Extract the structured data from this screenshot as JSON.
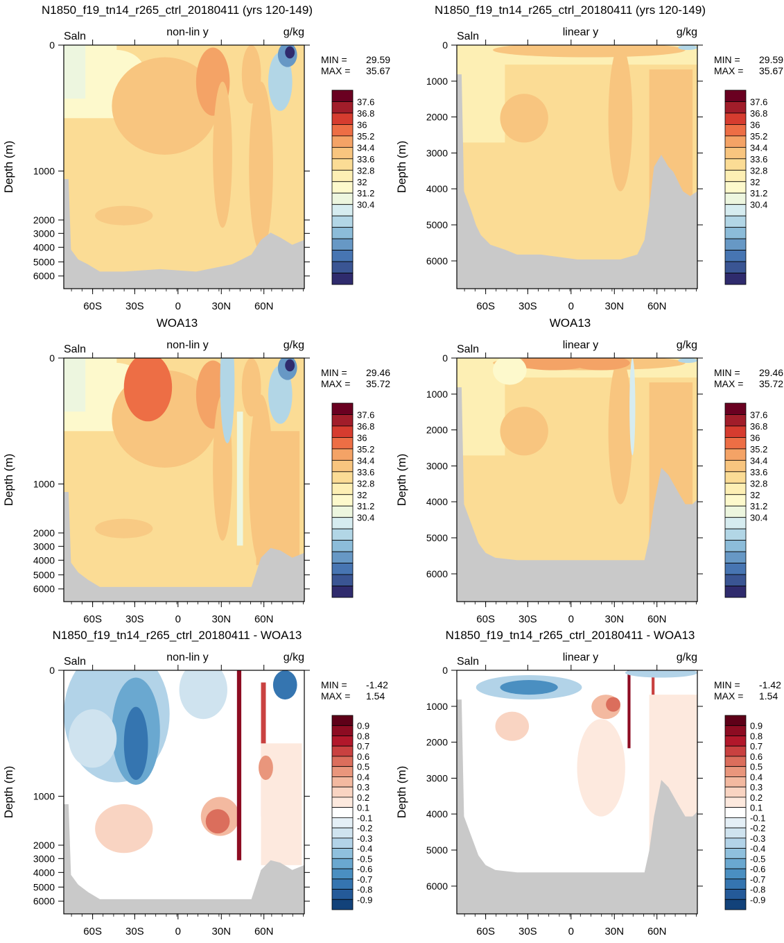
{
  "chart_data": [
    {
      "type": "heatmap",
      "panel": "model",
      "title": "N1850_f19_tn14_r265_ctrl_20180411 (yrs 120-149)",
      "variable_label": "Saln",
      "mode_label": "non-lin y",
      "units": "g/kg",
      "ylabel": "Depth (m)",
      "y_ticks": [
        "0",
        "1000",
        "2000",
        "3000",
        "4000",
        "5000",
        "6000"
      ],
      "x_ticks": [
        "60S",
        "30S",
        "0",
        "30N",
        "60N"
      ],
      "min_label": "MIN = ",
      "min": "29.59",
      "max_label": "MAX = ",
      "max": "35.67",
      "colorbar_labels": [
        "37.6",
        "36.8",
        "36",
        "35.2",
        "34.4",
        "33.6",
        "32.8",
        "32",
        "31.2",
        "30.4"
      ],
      "palette": [
        "#6a0021",
        "#a11d2a",
        "#d63c2f",
        "#ed6e45",
        "#f4a366",
        "#f8c57f",
        "#fbdc95",
        "#fdefb4",
        "#fdf9cc",
        "#edf6df",
        "#d6ecf0",
        "#b2d6e6",
        "#8cbcd9",
        "#6798c5",
        "#4775b2",
        "#3a5593",
        "#2f2b6d"
      ],
      "seafloor_color": "#c9c9c9"
    },
    {
      "type": "heatmap",
      "panel": "model",
      "title": "N1850_f19_tn14_r265_ctrl_20180411 (yrs 120-149)",
      "variable_label": "Saln",
      "mode_label": "linear y",
      "units": "g/kg",
      "ylabel": "Depth (m)",
      "y_ticks": [
        "0",
        "1000",
        "2000",
        "3000",
        "4000",
        "5000",
        "6000"
      ],
      "x_ticks": [
        "60S",
        "30S",
        "0",
        "30N",
        "60N"
      ],
      "min_label": "MIN = ",
      "min": "29.59",
      "max_label": "MAX = ",
      "max": "35.67",
      "colorbar_labels": [
        "37.6",
        "36.8",
        "36",
        "35.2",
        "34.4",
        "33.6",
        "32.8",
        "32",
        "31.2",
        "30.4"
      ],
      "palette": [
        "#6a0021",
        "#a11d2a",
        "#d63c2f",
        "#ed6e45",
        "#f4a366",
        "#f8c57f",
        "#fbdc95",
        "#fdefb4",
        "#fdf9cc",
        "#edf6df",
        "#d6ecf0",
        "#b2d6e6",
        "#8cbcd9",
        "#6798c5",
        "#4775b2",
        "#3a5593",
        "#2f2b6d"
      ],
      "seafloor_color": "#c9c9c9"
    },
    {
      "type": "heatmap",
      "panel": "obs",
      "title": "WOA13",
      "variable_label": "Saln",
      "mode_label": "non-lin y",
      "units": "g/kg",
      "ylabel": "Depth (m)",
      "y_ticks": [
        "0",
        "1000",
        "2000",
        "3000",
        "4000",
        "5000",
        "6000"
      ],
      "x_ticks": [
        "60S",
        "30S",
        "0",
        "30N",
        "60N"
      ],
      "min_label": "MIN = ",
      "min": "29.46",
      "max_label": "MAX = ",
      "max": "35.72",
      "colorbar_labels": [
        "37.6",
        "36.8",
        "36",
        "35.2",
        "34.4",
        "33.6",
        "32.8",
        "32",
        "31.2",
        "30.4"
      ],
      "palette": [
        "#6a0021",
        "#a11d2a",
        "#d63c2f",
        "#ed6e45",
        "#f4a366",
        "#f8c57f",
        "#fbdc95",
        "#fdefb4",
        "#fdf9cc",
        "#edf6df",
        "#d6ecf0",
        "#b2d6e6",
        "#8cbcd9",
        "#6798c5",
        "#4775b2",
        "#3a5593",
        "#2f2b6d"
      ],
      "seafloor_color": "#c9c9c9"
    },
    {
      "type": "heatmap",
      "panel": "obs",
      "title": "WOA13",
      "variable_label": "Saln",
      "mode_label": "linear y",
      "units": "g/kg",
      "ylabel": "Depth (m)",
      "y_ticks": [
        "0",
        "1000",
        "2000",
        "3000",
        "4000",
        "5000",
        "6000"
      ],
      "x_ticks": [
        "60S",
        "30S",
        "0",
        "30N",
        "60N"
      ],
      "min_label": "MIN = ",
      "min": "29.46",
      "max_label": "MAX = ",
      "max": "35.72",
      "colorbar_labels": [
        "37.6",
        "36.8",
        "36",
        "35.2",
        "34.4",
        "33.6",
        "32.8",
        "32",
        "31.2",
        "30.4"
      ],
      "palette": [
        "#6a0021",
        "#a11d2a",
        "#d63c2f",
        "#ed6e45",
        "#f4a366",
        "#f8c57f",
        "#fbdc95",
        "#fdefb4",
        "#fdf9cc",
        "#edf6df",
        "#d6ecf0",
        "#b2d6e6",
        "#8cbcd9",
        "#6798c5",
        "#4775b2",
        "#3a5593",
        "#2f2b6d"
      ],
      "seafloor_color": "#c9c9c9"
    },
    {
      "type": "heatmap",
      "panel": "diff",
      "title": "N1850_f19_tn14_r265_ctrl_20180411 - WOA13",
      "variable_label": "Saln",
      "mode_label": "non-lin y",
      "units": "g/kg",
      "ylabel": "Depth (m)",
      "y_ticks": [
        "0",
        "1000",
        "2000",
        "3000",
        "4000",
        "5000",
        "6000"
      ],
      "x_ticks": [
        "60S",
        "30S",
        "0",
        "30N",
        "60N"
      ],
      "min_label": "MIN = ",
      "min": "-1.42",
      "max_label": "MAX = ",
      "max": "1.54",
      "colorbar_labels": [
        "0.9",
        "0.8",
        "0.7",
        "0.6",
        "0.5",
        "0.4",
        "0.3",
        "0.2",
        "0.1",
        "-0.1",
        "-0.2",
        "-0.3",
        "-0.4",
        "-0.5",
        "-0.6",
        "-0.7",
        "-0.8",
        "-0.9"
      ],
      "palette": [
        "#5e0018",
        "#8d0c22",
        "#b2182b",
        "#c94140",
        "#db6e5c",
        "#e9967c",
        "#f3b9a0",
        "#f9d4c2",
        "#fde9de",
        "#ffffff",
        "#e4eff6",
        "#cfe3ef",
        "#b2d3e8",
        "#8fc0dd",
        "#6aa8d0",
        "#4a8fc1",
        "#3575b0",
        "#245a99",
        "#12427a"
      ],
      "seafloor_color": "#c9c9c9"
    },
    {
      "type": "heatmap",
      "panel": "diff",
      "title": "N1850_f19_tn14_r265_ctrl_20180411 - WOA13",
      "variable_label": "Saln",
      "mode_label": "linear y",
      "units": "g/kg",
      "ylabel": "Depth (m)",
      "y_ticks": [
        "0",
        "1000",
        "2000",
        "3000",
        "4000",
        "5000",
        "6000"
      ],
      "x_ticks": [
        "60S",
        "30S",
        "0",
        "30N",
        "60N"
      ],
      "min_label": "MIN = ",
      "min": "-1.42",
      "max_label": "MAX = ",
      "max": "1.54",
      "colorbar_labels": [
        "0.9",
        "0.8",
        "0.7",
        "0.6",
        "0.5",
        "0.4",
        "0.3",
        "0.2",
        "0.1",
        "-0.1",
        "-0.2",
        "-0.3",
        "-0.4",
        "-0.5",
        "-0.6",
        "-0.7",
        "-0.8",
        "-0.9"
      ],
      "palette": [
        "#5e0018",
        "#8d0c22",
        "#b2182b",
        "#c94140",
        "#db6e5c",
        "#e9967c",
        "#f3b9a0",
        "#f9d4c2",
        "#fde9de",
        "#ffffff",
        "#e4eff6",
        "#cfe3ef",
        "#b2d3e8",
        "#8fc0dd",
        "#6aa8d0",
        "#4a8fc1",
        "#3575b0",
        "#245a99",
        "#12427a"
      ],
      "seafloor_color": "#c9c9c9"
    }
  ]
}
